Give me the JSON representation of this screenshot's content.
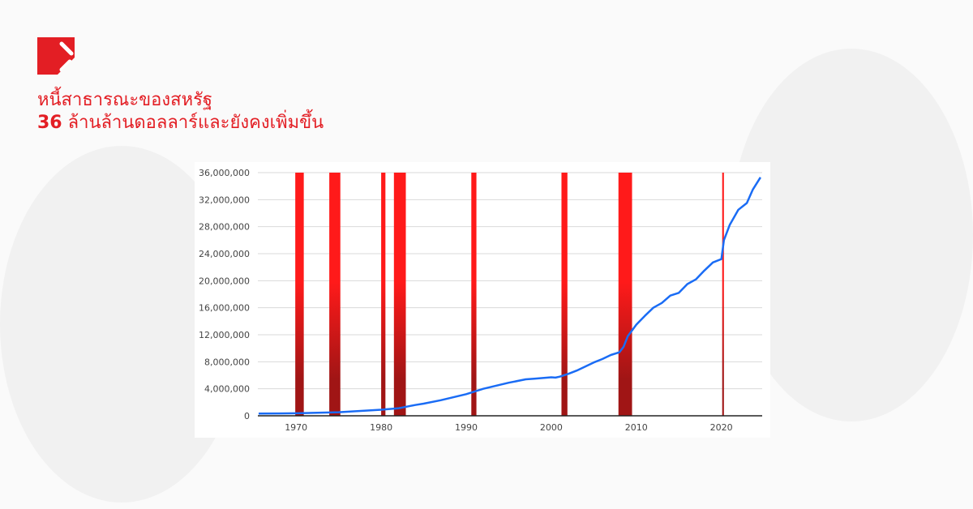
{
  "header": {
    "logo": "red square brand logo",
    "title_line1": "หนี้สาธารณะของสหรัฐ",
    "title_line2_number": "36",
    "title_line2_text": " ล้านล้านดอลลาร์และยังคงเพิ่มขึ้น"
  },
  "colors": {
    "brand": "#e31e24",
    "line": "#1a6cf5",
    "recession": "#ff1a1a",
    "grid": "#d9d9d9"
  },
  "chart_data": {
    "type": "line",
    "title": "",
    "xlabel": "",
    "ylabel": "",
    "xlim": [
      1965.5,
      2024.8
    ],
    "ylim": [
      0,
      36000000
    ],
    "grid": true,
    "x_ticks": [
      "1970",
      "1980",
      "1990",
      "2000",
      "2010",
      "2020"
    ],
    "y_ticks": [
      "0",
      "4,000,000",
      "8,000,000",
      "12,000,000",
      "16,000,000",
      "20,000,000",
      "24,000,000",
      "28,000,000",
      "32,000,000",
      "36,000,000"
    ],
    "shaded_periods": [
      [
        1969.9,
        1970.9
      ],
      [
        1973.9,
        1975.2
      ],
      [
        1980.0,
        1980.5
      ],
      [
        1981.5,
        1982.9
      ],
      [
        1990.6,
        1991.2
      ],
      [
        2001.2,
        2001.9
      ],
      [
        2007.9,
        2009.5
      ],
      [
        2020.1,
        2020.3
      ]
    ],
    "series": [
      {
        "x": [
          1965.6,
          1968,
          1970,
          1972,
          1975,
          1978,
          1980,
          1982,
          1984,
          1985,
          1987,
          1990,
          1992,
          1994,
          1995,
          1997,
          1998,
          2000,
          2000.5,
          2001,
          2002,
          2003,
          2005,
          2006,
          2007,
          2008,
          2008.5,
          2009,
          2010,
          2011,
          2012,
          2013,
          2014,
          2015,
          2016,
          2017,
          2018,
          2019,
          2020.0,
          2020.3,
          2021,
          2022,
          2023,
          2023.7,
          2024.6
        ],
        "y": [
          320000,
          350000,
          370000,
          430000,
          530000,
          760000,
          900000,
          1100000,
          1600000,
          1800000,
          2300000,
          3200000,
          4000000,
          4600000,
          4900000,
          5400000,
          5500000,
          5700000,
          5650000,
          5800000,
          6200000,
          6700000,
          7900000,
          8400000,
          9000000,
          9400000,
          10200000,
          11800000,
          13500000,
          14800000,
          16000000,
          16700000,
          17800000,
          18200000,
          19500000,
          20200000,
          21500000,
          22700000,
          23200000,
          26000000,
          28300000,
          30500000,
          31500000,
          33500000,
          35300000
        ]
      }
    ]
  }
}
